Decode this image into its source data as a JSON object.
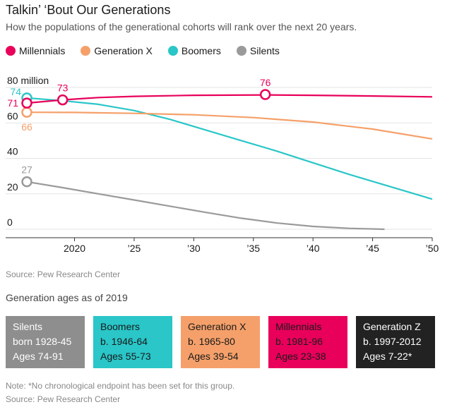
{
  "title": "Talkin’ ‘Bout Our Generations",
  "subtitle": "How the populations of the generational cohorts will rank over the next 20 years.",
  "legend": [
    {
      "label": "Millennials",
      "color": "#e8005a"
    },
    {
      "label": "Generation X",
      "color": "#f5a06a"
    },
    {
      "label": "Boomers",
      "color": "#2ac6c8"
    },
    {
      "label": "Silents",
      "color": "#9a9a9a"
    }
  ],
  "chart_data": {
    "type": "line",
    "ylim": [
      0,
      80
    ],
    "xlim": [
      2016,
      2050
    ],
    "y_ticks": [
      {
        "value": 80,
        "label": "80 million"
      },
      {
        "value": 60,
        "label": "60"
      },
      {
        "value": 40,
        "label": "40"
      },
      {
        "value": 20,
        "label": "20"
      },
      {
        "value": 0,
        "label": "0"
      }
    ],
    "x_ticks": [
      {
        "value": 2020,
        "label": "2020"
      },
      {
        "value": 2025,
        "label": "’25"
      },
      {
        "value": 2030,
        "label": "’30"
      },
      {
        "value": 2035,
        "label": "’35"
      },
      {
        "value": 2040,
        "label": "’40"
      },
      {
        "value": 2045,
        "label": "’45"
      },
      {
        "value": 2050,
        "label": "’50"
      }
    ],
    "series": [
      {
        "name": "Boomers",
        "color": "#2ac6c8",
        "points": [
          [
            2016,
            74.1
          ],
          [
            2019,
            72.5
          ],
          [
            2022,
            70.5
          ],
          [
            2025,
            67
          ],
          [
            2028,
            62
          ],
          [
            2031,
            56
          ],
          [
            2034,
            50
          ],
          [
            2037,
            44
          ],
          [
            2040,
            37.5
          ],
          [
            2043,
            31
          ],
          [
            2046,
            25
          ],
          [
            2048,
            21
          ],
          [
            2050,
            17
          ]
        ],
        "markers": [
          {
            "x": 2016,
            "y": 74.1,
            "label": "74"
          }
        ]
      },
      {
        "name": "Generation X",
        "color": "#f5a06a",
        "points": [
          [
            2016,
            66
          ],
          [
            2020,
            65.9
          ],
          [
            2025,
            65.4
          ],
          [
            2030,
            64.6
          ],
          [
            2035,
            63
          ],
          [
            2040,
            60.5
          ],
          [
            2045,
            56.5
          ],
          [
            2050,
            51
          ]
        ],
        "markers": [
          {
            "x": 2016,
            "y": 66,
            "label": "66"
          }
        ]
      },
      {
        "name": "Silents",
        "color": "#9a9a9a",
        "points": [
          [
            2016,
            26.8
          ],
          [
            2019,
            23.5
          ],
          [
            2022,
            20
          ],
          [
            2025,
            16.5
          ],
          [
            2028,
            13
          ],
          [
            2031,
            9.5
          ],
          [
            2034,
            6.2
          ],
          [
            2037,
            3.5
          ],
          [
            2040,
            1.6
          ],
          [
            2043,
            0.5
          ],
          [
            2046,
            0
          ]
        ],
        "markers": [
          {
            "x": 2016,
            "y": 26.8,
            "label": "27"
          }
        ]
      },
      {
        "name": "Millennials",
        "color": "#e8005a",
        "points": [
          [
            2016,
            71.2
          ],
          [
            2019,
            73
          ],
          [
            2022,
            74.3
          ],
          [
            2025,
            75
          ],
          [
            2030,
            75.6
          ],
          [
            2036,
            75.8
          ],
          [
            2040,
            75.6
          ],
          [
            2045,
            75.2
          ],
          [
            2050,
            74.7
          ]
        ],
        "markers": [
          {
            "x": 2016,
            "y": 71.2,
            "label": "71"
          },
          {
            "x": 2019,
            "y": 73,
            "label": "73"
          },
          {
            "x": 2036,
            "y": 76,
            "label": "76"
          }
        ]
      }
    ]
  },
  "source": "Source: Pew Research Center",
  "ages_heading": "Generation ages as of 2019",
  "generations": [
    {
      "name": "Silents",
      "born": "born 1928-45",
      "ages": "Ages 74-91",
      "bg": "#8e8e8e",
      "fg": "#ffffff"
    },
    {
      "name": "Boomers",
      "born": "b. 1946-64",
      "ages": "Ages 55-73",
      "bg": "#2ac6c8",
      "fg": "#1a1a1a"
    },
    {
      "name": "Generation X",
      "born": "b. 1965-80",
      "ages": "Ages 39-54",
      "bg": "#f5a06a",
      "fg": "#1a1a1a"
    },
    {
      "name": "Millennials",
      "born": "b. 1981-96",
      "ages": "Ages 23-38",
      "bg": "#e8005a",
      "fg": "#1a1a1a"
    },
    {
      "name": "Generation Z",
      "born": "b. 1997-2012",
      "ages": "Ages 7-22*",
      "bg": "#222222",
      "fg": "#ffffff"
    }
  ],
  "note": "Note: *No chronological endpoint has been set for this group.",
  "source2": "Source: Pew Research Center"
}
